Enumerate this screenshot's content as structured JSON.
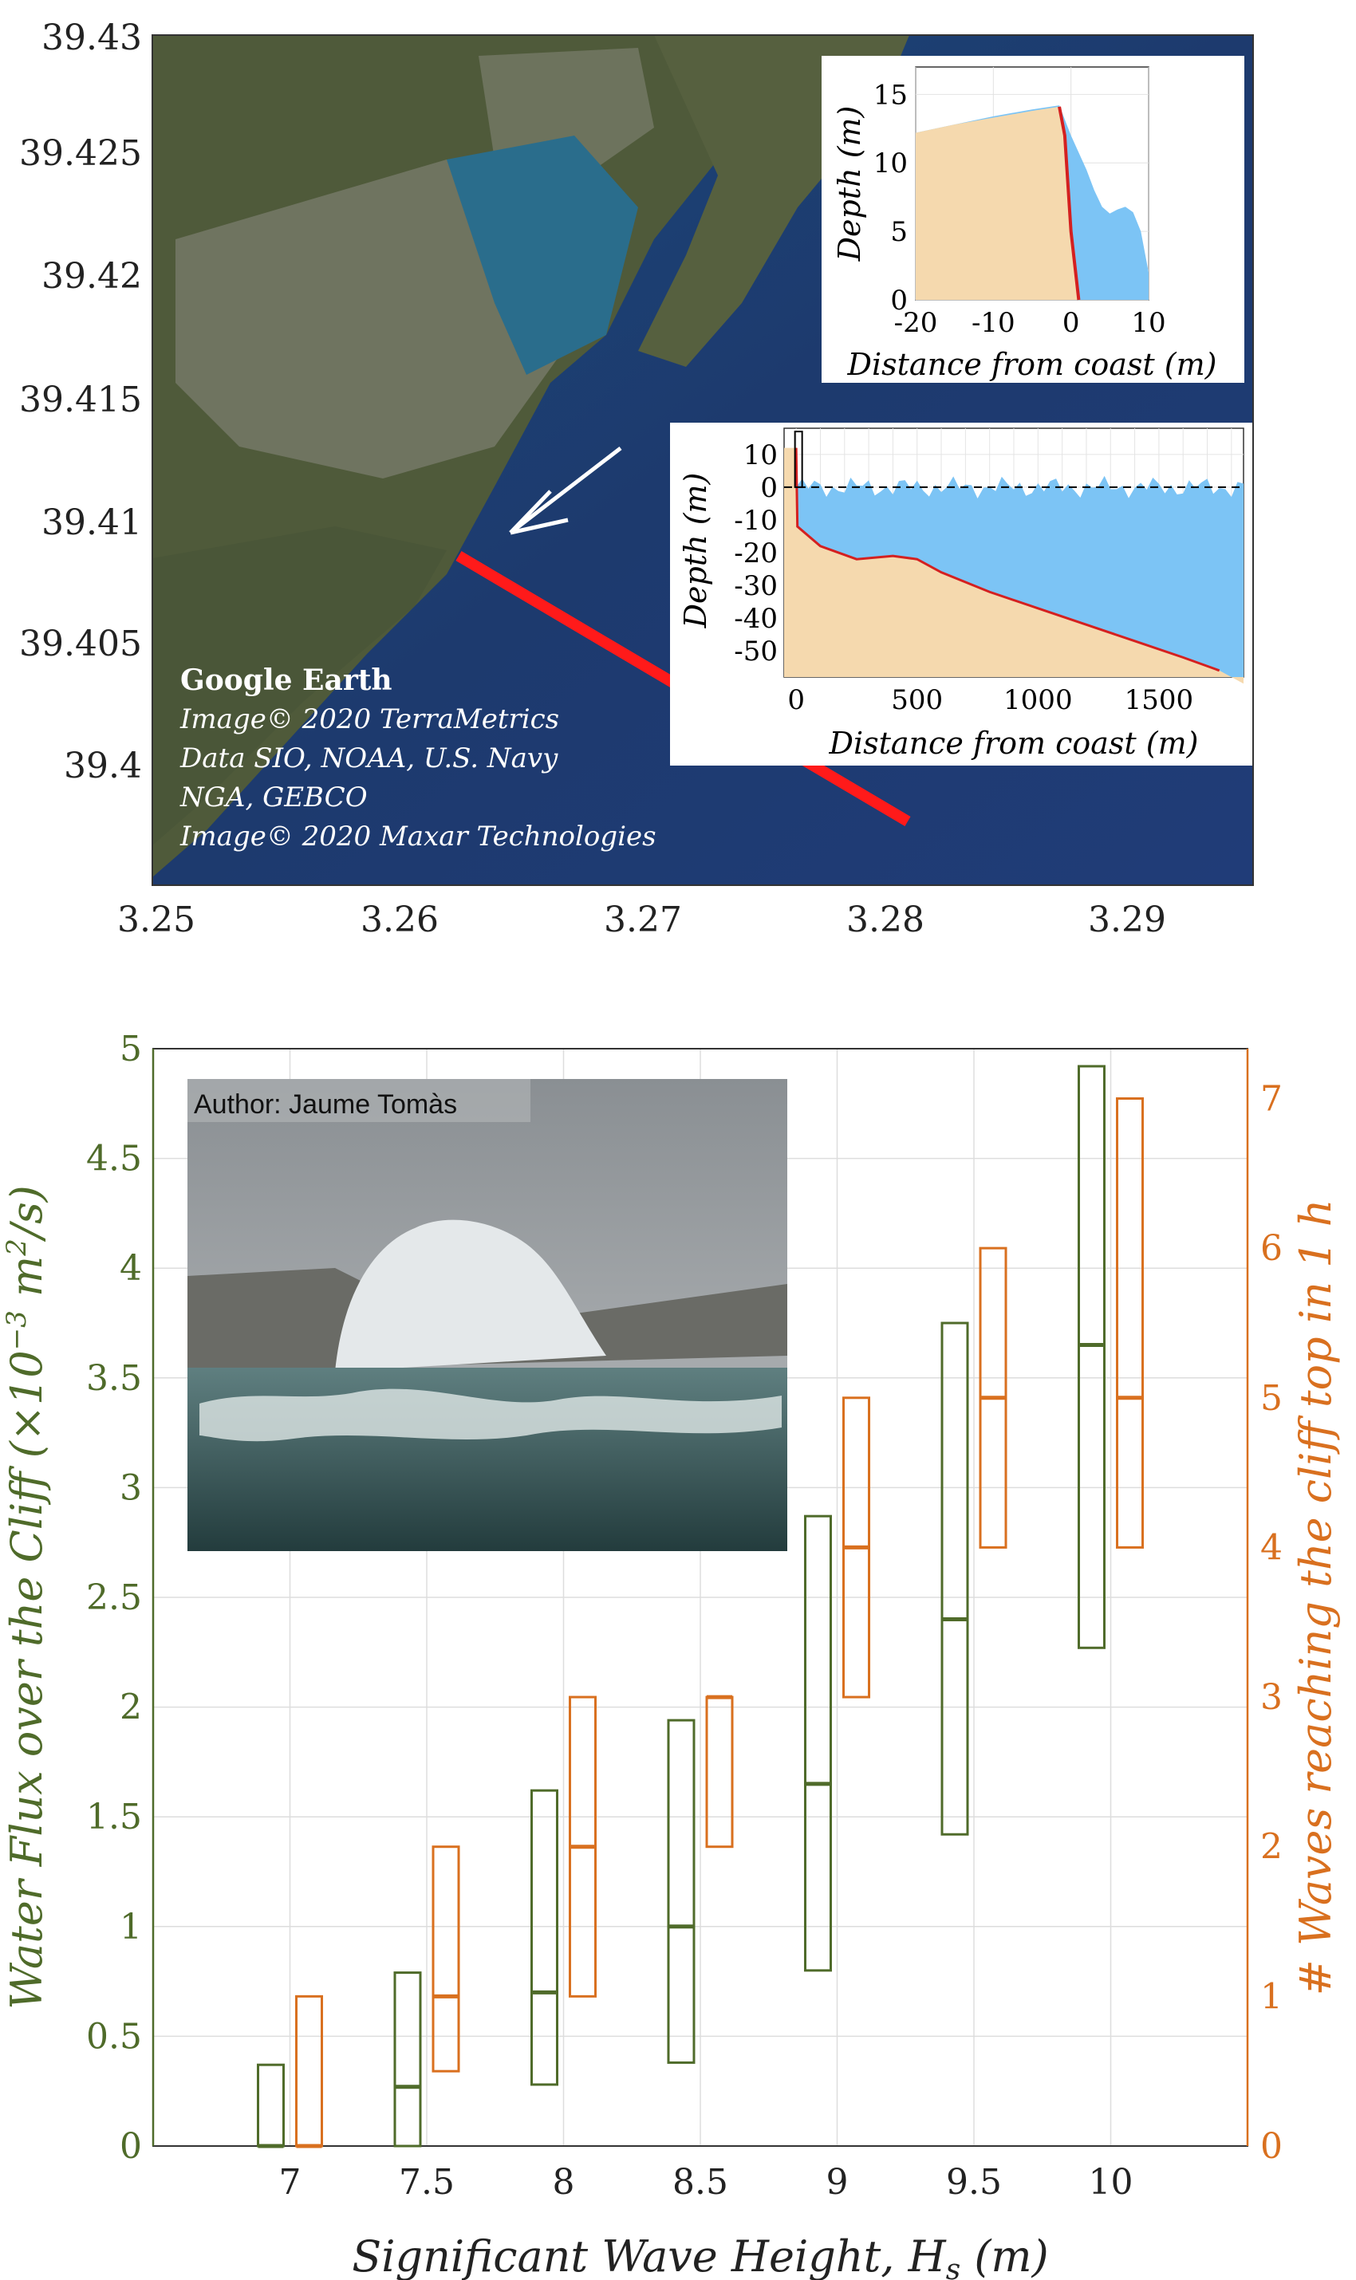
{
  "map": {
    "x_ticks": [
      "3.25",
      "3.26",
      "3.27",
      "3.28",
      "3.29"
    ],
    "y_ticks": [
      "39.43",
      "39.425",
      "39.42",
      "39.415",
      "39.41",
      "39.405",
      "39.4"
    ],
    "attribution": {
      "title": "Google Earth",
      "line1": "Image© 2020 TerraMetrics",
      "line2": "Data SIO, NOAA, U.S. Navy",
      "line3": "NGA, GEBCO",
      "line4": "Image© 2020 Maxar Technologies"
    },
    "colors": {
      "sea": "#1d3a6e",
      "land": "#4d5a3a",
      "transect": "#ff1a1a",
      "arrow": "#ffffff"
    }
  },
  "chart_data": [
    {
      "type": "area",
      "panel": "inset-near-cliff-profile",
      "xlabel": "Distance from coast (m)",
      "ylabel": "Depth (m)",
      "xlim": [
        -20,
        10
      ],
      "ylim": [
        0,
        17
      ],
      "x_ticks": [
        "-20",
        "-10",
        "0",
        "10"
      ],
      "y_ticks": [
        "0",
        "5",
        "10",
        "15"
      ],
      "bottom_profile": {
        "x": [
          -20,
          -15,
          -10,
          -5,
          -1.5,
          -0.8,
          0,
          1
        ],
        "y": [
          12.2,
          12.8,
          13.3,
          13.8,
          14.1,
          12,
          5,
          0
        ]
      },
      "water_surface": {
        "x": [
          -20,
          -15,
          -10,
          -5,
          -1.5,
          0,
          2,
          3,
          4,
          5,
          6,
          7,
          8,
          9,
          10
        ],
        "y": [
          12.2,
          12.8,
          13.4,
          13.9,
          14.2,
          12,
          9.5,
          8,
          6.8,
          6.3,
          6.6,
          6.8,
          6.4,
          5,
          2
        ]
      },
      "colors": {
        "bottom": "#f5d9ae",
        "water": "#7cc4f5",
        "profile_line": "#d42020"
      }
    },
    {
      "type": "area",
      "panel": "inset-transect-profile",
      "xlabel": "Distance from coast (m)",
      "ylabel": "Depth (m)",
      "xlim": [
        -50,
        1850
      ],
      "ylim": [
        -58,
        18
      ],
      "x_ticks": [
        "0",
        "500",
        "1000",
        "1500"
      ],
      "y_ticks": [
        "10",
        "0",
        "-10",
        "-20",
        "-30",
        "-40",
        "-50"
      ],
      "bottom_profile": {
        "x": [
          -50,
          0,
          5,
          100,
          250,
          400,
          500,
          600,
          800,
          1000,
          1200,
          1400,
          1600,
          1750
        ],
        "y": [
          12,
          12,
          -12,
          -18,
          -22,
          -21,
          -22,
          -26,
          -32,
          -37,
          -42,
          -47,
          -52,
          -56
        ]
      },
      "still_water_level": 0,
      "colors": {
        "bottom": "#f5d9ae",
        "water": "#7cc4f5",
        "profile_line": "#d42020"
      }
    },
    {
      "type": "box",
      "panel": "main",
      "xlabel": "Significant Wave Height, H_s (m)",
      "ylabel_left": "Water Flux over the Cliff (×10⁻³ m²/s)",
      "ylabel_right": "# Waves reaching the cliff top in 1 h",
      "xlim": [
        6.5,
        10.5
      ],
      "ylim_left": [
        0,
        5
      ],
      "ylim_right": [
        0,
        7.333
      ],
      "grid": true,
      "x_ticks": [
        "7",
        "7.5",
        "8",
        "8.5",
        "9",
        "9.5",
        "10"
      ],
      "y_ticks_left": [
        "0",
        "0.5",
        "1",
        "1.5",
        "2",
        "2.5",
        "3",
        "3.5",
        "4",
        "4.5",
        "5"
      ],
      "y_ticks_right": [
        "0",
        "1",
        "2",
        "3",
        "4",
        "5",
        "6",
        "7"
      ],
      "categories": [
        7,
        7.5,
        8,
        8.5,
        9,
        9.5,
        10
      ],
      "series": [
        {
          "axis": "left",
          "color": "#4f6b2a",
          "boxes": [
            {
              "low": 0,
              "median": 0,
              "high": 0.37
            },
            {
              "low": 0,
              "median": 0.27,
              "high": 0.79
            },
            {
              "low": 0.28,
              "median": 0.7,
              "high": 1.62
            },
            {
              "low": 0.38,
              "median": 1.0,
              "high": 1.94
            },
            {
              "low": 0.8,
              "median": 1.65,
              "high": 2.87
            },
            {
              "low": 1.42,
              "median": 2.4,
              "high": 3.75
            },
            {
              "low": 2.27,
              "median": 3.65,
              "high": 4.92
            }
          ]
        },
        {
          "axis": "right",
          "color": "#d9701f",
          "boxes": [
            {
              "low": 0,
              "median": 0,
              "high": 1
            },
            {
              "low": 0.5,
              "median": 1,
              "high": 2
            },
            {
              "low": 1,
              "median": 2,
              "high": 3
            },
            {
              "low": 2,
              "median": 3,
              "high": 3
            },
            {
              "low": 3,
              "median": 4,
              "high": 5
            },
            {
              "low": 4,
              "median": 5,
              "high": 6
            },
            {
              "low": 4,
              "median": 5,
              "high": 7
            }
          ]
        }
      ],
      "photo_caption": "Author: Jaume Tomàs"
    }
  ]
}
